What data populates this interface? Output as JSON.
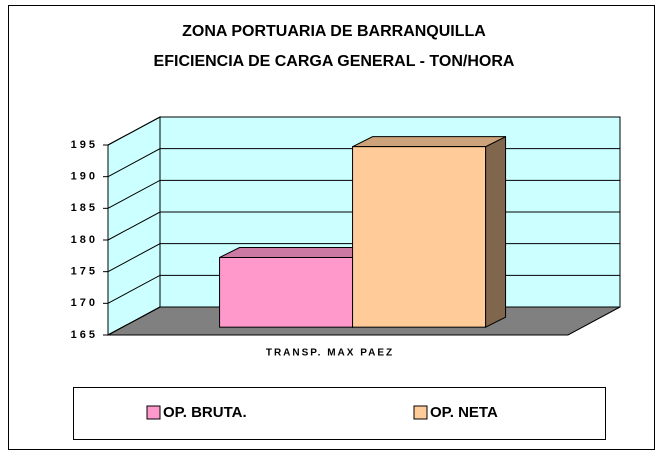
{
  "chart_data": {
    "type": "bar3d",
    "title": [
      "ZONA PORTUARIA DE BARRANQUILLA",
      "EFICIENCIA DE CARGA GENERAL -  TON/HORA"
    ],
    "categories": [
      "TRANSP. MAX PAEZ"
    ],
    "series": [
      {
        "name": "OP. BRUTA.",
        "color": "#ff99cc",
        "values": [
          176
        ]
      },
      {
        "name": "OP. NETA",
        "color": "#ffcc99",
        "values": [
          193.5
        ]
      }
    ],
    "ylim": [
      165,
      195
    ],
    "yticks": [
      165,
      170,
      175,
      180,
      185,
      190,
      195
    ],
    "grid": true,
    "legend": "bottom"
  }
}
